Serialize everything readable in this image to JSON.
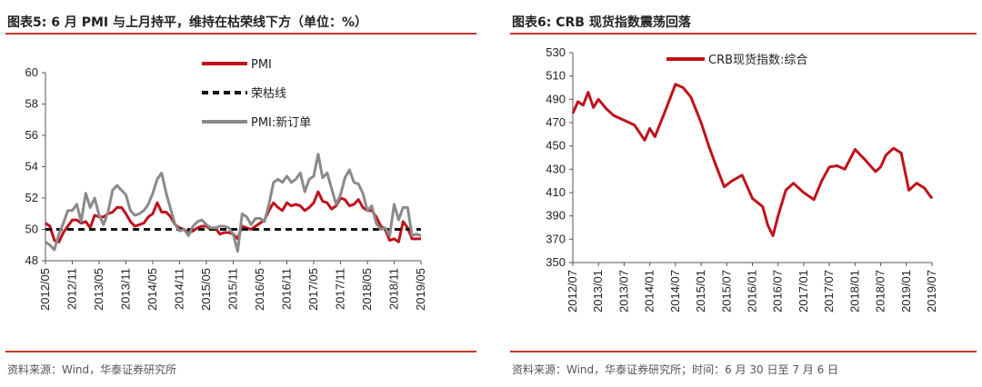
{
  "chart_data": [
    {
      "type": "line",
      "title": "图表5:   6 月 PMI 与上月持平，维持在枯荣线下方（单位：%）",
      "source": "资料来源：Wind，华泰证券研究所",
      "ylim": [
        48,
        60
      ],
      "yticks": [
        "48",
        "50",
        "52",
        "54",
        "56",
        "58",
        "60"
      ],
      "xticks": [
        "2012/05",
        "2012/11",
        "2013/05",
        "2013/11",
        "2014/05",
        "2014/11",
        "2015/05",
        "2015/11",
        "2016/05",
        "2016/11",
        "2017/05",
        "2017/11",
        "2018/05",
        "2018/11",
        "2019/05"
      ],
      "x_count": 85,
      "legend_position": "top-center",
      "series": [
        {
          "name": "PMI",
          "color": "#c0121b",
          "style": "solid",
          "values": [
            50.4,
            50.2,
            49.3,
            49.2,
            49.8,
            50.2,
            50.6,
            50.6,
            50.4,
            50.5,
            50.1,
            50.9,
            50.8,
            50.8,
            51.0,
            51.1,
            51.4,
            51.4,
            51.0,
            50.5,
            50.2,
            50.3,
            50.4,
            50.8,
            51.0,
            51.7,
            51.1,
            51.1,
            50.8,
            50.3,
            50.1,
            50.0,
            49.8,
            49.9,
            50.1,
            50.2,
            50.2,
            50.0,
            50.1,
            49.7,
            49.8,
            49.8,
            49.7,
            49.4,
            50.2,
            50.1,
            50.0,
            50.2,
            50.4,
            50.6,
            51.2,
            51.7,
            51.4,
            51.2,
            51.7,
            51.5,
            51.6,
            51.5,
            51.2,
            51.4,
            51.7,
            52.4,
            51.8,
            51.7,
            51.3,
            51.5,
            52.0,
            51.9,
            51.5,
            51.6,
            51.9,
            51.4,
            51.2,
            51.2,
            50.8,
            50.2,
            50.0,
            49.3,
            49.4,
            49.2,
            50.5,
            50.1,
            49.4,
            49.4,
            49.4
          ]
        },
        {
          "name": "荣枯线",
          "color": "#111111",
          "style": "dashed",
          "values": [
            50,
            50,
            50,
            50,
            50,
            50,
            50,
            50,
            50,
            50,
            50,
            50,
            50,
            50,
            50,
            50,
            50,
            50,
            50,
            50,
            50,
            50,
            50,
            50,
            50,
            50,
            50,
            50,
            50,
            50,
            50,
            50,
            50,
            50,
            50,
            50,
            50,
            50,
            50,
            50,
            50,
            50,
            50,
            50,
            50,
            50,
            50,
            50,
            50,
            50,
            50,
            50,
            50,
            50,
            50,
            50,
            50,
            50,
            50,
            50,
            50,
            50,
            50,
            50,
            50,
            50,
            50,
            50,
            50,
            50,
            50,
            50,
            50,
            50,
            50,
            50,
            50,
            50,
            50,
            50,
            50,
            50,
            50,
            50,
            50
          ]
        },
        {
          "name": "PMI:新订单",
          "color": "#8a8a8a",
          "style": "solid",
          "values": [
            49.2,
            49.0,
            48.7,
            49.7,
            50.4,
            51.2,
            51.2,
            51.6,
            50.5,
            52.3,
            51.4,
            52.0,
            50.9,
            50.3,
            51.1,
            52.5,
            52.8,
            52.5,
            52.2,
            51.2,
            50.9,
            51.0,
            51.2,
            51.6,
            52.3,
            53.2,
            53.6,
            52.3,
            51.3,
            50.3,
            49.9,
            50.0,
            49.6,
            50.2,
            50.5,
            50.6,
            50.3,
            50.1,
            50.1,
            50.2,
            50.2,
            50.1,
            49.7,
            48.6,
            51.0,
            50.8,
            50.3,
            50.7,
            50.7,
            50.5,
            51.6,
            53.0,
            53.2,
            53.0,
            53.4,
            53.0,
            53.2,
            53.6,
            52.4,
            53.2,
            53.4,
            54.8,
            53.3,
            53.6,
            52.6,
            51.6,
            52.2,
            53.3,
            53.8,
            53.0,
            52.9,
            52.3,
            51.2,
            51.5,
            50.4,
            50.0,
            50.1,
            49.6,
            51.6,
            50.6,
            51.4,
            51.4,
            49.6,
            49.7,
            49.6
          ]
        }
      ]
    },
    {
      "type": "line",
      "title": "图表6:   CRB 现货指数震荡回落",
      "source": "资料来源：Wind，华泰证券研究所；时间：6 月 30 日至 7 月 6 日",
      "ylim": [
        350,
        530
      ],
      "yticks": [
        "350",
        "370",
        "390",
        "410",
        "430",
        "450",
        "470",
        "490",
        "510",
        "530"
      ],
      "xticks": [
        "2012/07",
        "2013/01",
        "2013/07",
        "2014/01",
        "2014/07",
        "2015/01",
        "2015/07",
        "2016/01",
        "2016/07",
        "2017/01",
        "2017/07",
        "2018/01",
        "2018/07",
        "2019/01",
        "2019/07"
      ],
      "legend_position": "top-center",
      "series": [
        {
          "name": "CRB现货指数:综合",
          "color": "#c0121b",
          "style": "solid",
          "x": [
            0,
            0.2,
            0.4,
            0.6,
            0.8,
            1.0,
            1.3,
            1.6,
            2.0,
            2.4,
            2.8,
            3.0,
            3.2,
            3.6,
            4.0,
            4.3,
            4.6,
            5.0,
            5.3,
            5.6,
            5.9,
            6.2,
            6.6,
            7.0,
            7.4,
            7.6,
            7.8,
            8.0,
            8.3,
            8.6,
            9.0,
            9.4,
            9.7,
            10.0,
            10.3,
            10.6,
            11.0,
            11.4,
            11.8,
            12.0,
            12.2,
            12.5,
            12.8,
            13.1,
            13.4,
            13.7,
            14.0
          ],
          "values": [
            478,
            488,
            485,
            496,
            483,
            490,
            482,
            476,
            472,
            468,
            455,
            465,
            458,
            480,
            503,
            500,
            492,
            470,
            450,
            432,
            415,
            420,
            425,
            405,
            398,
            382,
            373,
            390,
            412,
            418,
            410,
            404,
            420,
            432,
            433,
            430,
            447,
            438,
            428,
            432,
            442,
            448,
            444,
            412,
            418,
            414,
            405
          ]
        }
      ]
    }
  ]
}
